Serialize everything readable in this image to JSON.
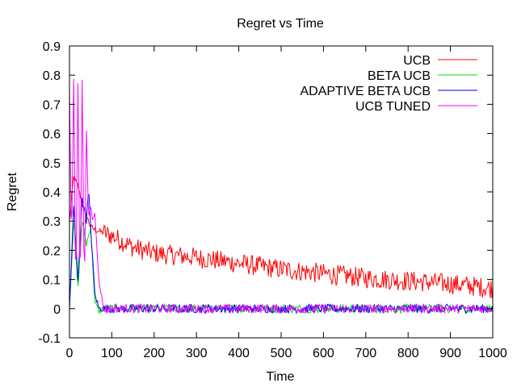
{
  "chart_data": {
    "type": "line",
    "title": "Regret vs Time",
    "xlabel": "Time",
    "ylabel": "Regret",
    "xlim": [
      0,
      1000
    ],
    "ylim": [
      -0.1,
      0.9
    ],
    "x_ticks": [
      0,
      100,
      200,
      300,
      400,
      500,
      600,
      700,
      800,
      900,
      1000
    ],
    "y_ticks": [
      -0.1,
      0,
      0.1,
      0.2,
      0.3,
      0.4,
      0.5,
      0.6,
      0.7,
      0.8,
      0.9
    ],
    "x_tick_labels": [
      "0",
      "100",
      "200",
      "300",
      "400",
      "500",
      "600",
      "700",
      "800",
      "900",
      "1000"
    ],
    "y_tick_labels": [
      "-0.1",
      "0",
      "0.1",
      "0.2",
      "0.3",
      "0.4",
      "0.5",
      "0.6",
      "0.7",
      "0.8",
      "0.9"
    ],
    "grid": false,
    "legend_position": "top-right",
    "series": [
      {
        "name": "UCB",
        "color": "#ff0000",
        "x": [
          0,
          10,
          20,
          30,
          40,
          50,
          60,
          80,
          100,
          150,
          200,
          300,
          400,
          500,
          600,
          700,
          800,
          900,
          1000
        ],
        "y": [
          0.3,
          0.45,
          0.42,
          0.36,
          0.32,
          0.28,
          0.27,
          0.26,
          0.25,
          0.21,
          0.19,
          0.175,
          0.155,
          0.135,
          0.12,
          0.105,
          0.095,
          0.085,
          0.07
        ]
      },
      {
        "name": "BETA UCB",
        "color": "#00dd00",
        "x": [
          0,
          10,
          20,
          30,
          40,
          50,
          60,
          70,
          80,
          100,
          200,
          300,
          400,
          500,
          600,
          700,
          800,
          900,
          1000
        ],
        "y": [
          0.0,
          0.3,
          0.07,
          0.3,
          0.22,
          0.28,
          0.02,
          -0.01,
          0.0,
          0.0,
          0.0,
          0.0,
          0.0,
          0.0,
          0.0,
          0.0,
          0.0,
          0.0,
          0.0
        ]
      },
      {
        "name": "ADAPTIVE BETA UCB",
        "color": "#0000ff",
        "x": [
          0,
          10,
          20,
          30,
          40,
          45,
          50,
          60,
          70,
          80,
          100,
          200,
          300,
          400,
          500,
          600,
          700,
          800,
          900,
          1000
        ],
        "y": [
          0.0,
          0.35,
          0.1,
          0.38,
          0.3,
          0.41,
          0.28,
          0.05,
          0.0,
          0.0,
          0.0,
          0.0,
          0.0,
          0.0,
          0.0,
          0.0,
          0.0,
          0.0,
          0.0,
          0.0
        ]
      },
      {
        "name": "UCB TUNED",
        "color": "#ff00ff",
        "x": [
          0,
          5,
          10,
          15,
          20,
          25,
          30,
          35,
          40,
          45,
          50,
          55,
          60,
          65,
          70,
          80,
          100,
          200,
          300,
          400,
          500,
          600,
          700,
          800,
          900,
          1000
        ],
        "y": [
          0.75,
          0.2,
          0.79,
          0.02,
          0.78,
          0.03,
          0.79,
          0.05,
          0.62,
          0.3,
          0.35,
          0.3,
          0.33,
          0.2,
          0.1,
          0.0,
          0.0,
          0.0,
          0.0,
          0.0,
          0.0,
          0.0,
          0.0,
          0.0,
          0.0,
          0.0
        ]
      }
    ]
  }
}
